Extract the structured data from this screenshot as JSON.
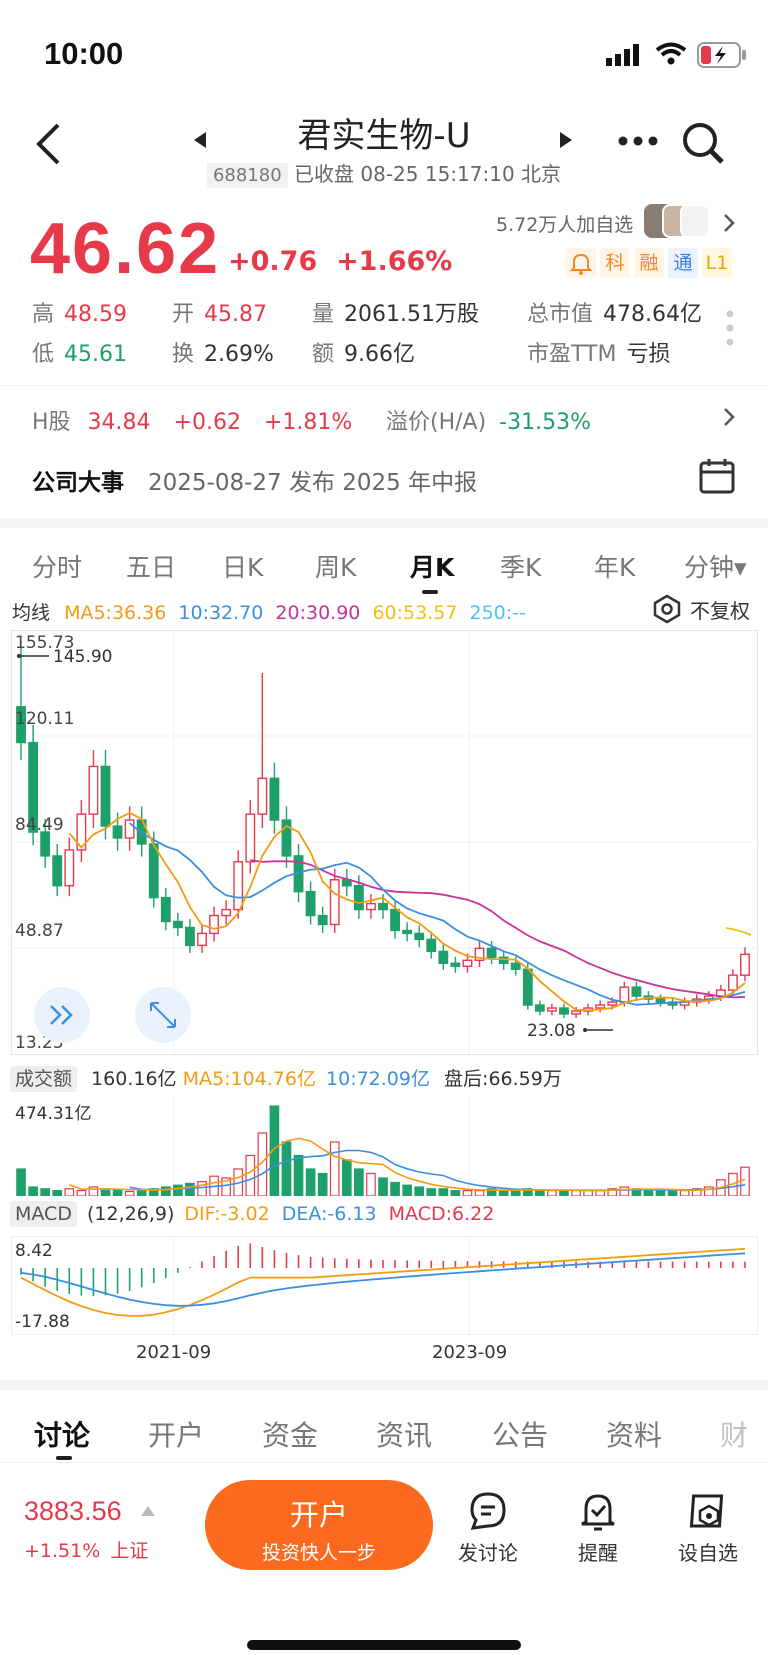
{
  "status": {
    "time": "10:00"
  },
  "header": {
    "title": "君实生物-U",
    "code": "688180",
    "status_text": "已收盘 08-25 15:17:10 北京"
  },
  "quote": {
    "price": "46.62",
    "change": "+0.76",
    "change_pct": "+1.66%",
    "followers": "5.72万人加自选",
    "tags": [
      "科",
      "融",
      "通",
      "L1"
    ],
    "high_label": "高",
    "high": "48.59",
    "open_label": "开",
    "open": "45.87",
    "vol_label": "量",
    "vol": "2061.51万股",
    "mcap_label": "总市值",
    "mcap": "478.64亿",
    "low_label": "低",
    "low": "45.61",
    "turn_label": "换",
    "turn": "2.69%",
    "amt_label": "额",
    "amt": "9.66亿",
    "pe_label": "市盈TTM",
    "pe": "亏损"
  },
  "hshare": {
    "label": "H股",
    "price": "34.84",
    "change": "+0.62",
    "pct": "+1.81%",
    "premium_label": "溢价(H/A)",
    "premium": "-31.53%"
  },
  "event": {
    "label": "公司大事",
    "text": "2025-08-27 发布 2025 年中报"
  },
  "tabs": [
    "分时",
    "五日",
    "日K",
    "周K",
    "月K",
    "季K",
    "年K",
    "分钟▾"
  ],
  "ma": {
    "label": "均线",
    "ma5": "MA5:36.36",
    "ma10": "10:32.70",
    "ma20": "20:30.90",
    "ma60": "60:53.57",
    "ma250": "250:--",
    "adjust": "不复权"
  },
  "price_axis": {
    "p1": "155.73",
    "p2": "120.11",
    "p3": "84.49",
    "p4": "48.87",
    "p5": "13.25",
    "hi": "145.90",
    "lo": "23.08"
  },
  "volume": {
    "label": "成交额",
    "value": "160.16亿",
    "ma5": "MA5:104.76亿",
    "ma10": "10:72.09亿",
    "after": "盘后:66.59万",
    "max": "474.31亿"
  },
  "macd": {
    "label": "MACD",
    "params": "(12,26,9)",
    "dif": "DIF:-3.02",
    "dea": "DEA:-6.13",
    "macd": "MACD:6.22",
    "top": "8.42",
    "bottom": "-17.88"
  },
  "x_axis": {
    "d1": "2021-09",
    "d2": "2023-09"
  },
  "bottom_tabs": [
    "讨论",
    "开户",
    "资金",
    "资讯",
    "公告",
    "资料",
    "财"
  ],
  "footer": {
    "index_value": "3883.56",
    "index_change": "+1.51%",
    "index_name": "上证",
    "open_title": "开户",
    "open_sub": "投资快人一步",
    "discuss": "发讨论",
    "remind": "提醒",
    "watch": "设自选"
  },
  "colors": {
    "up": "#e6394a",
    "down": "#1ea06a",
    "ma5": "#f39c12",
    "ma10": "#3b8fe0",
    "ma20": "#c7339b",
    "ma60": "#f2c10f",
    "ma250": "#4fc3f7",
    "accent": "#fb6a1e"
  }
}
